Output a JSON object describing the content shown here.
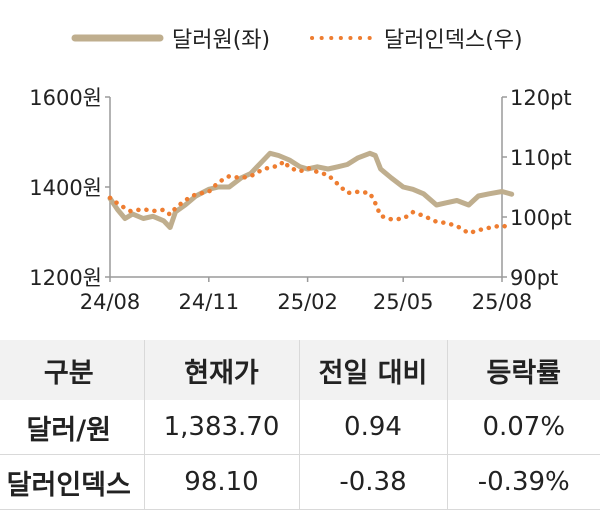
{
  "chart_data": {
    "type": "line",
    "legend": {
      "position": "top",
      "entries": [
        "달러원(좌)",
        "달러인덱스(우)"
      ]
    },
    "x_tick_labels": [
      "24/08",
      "24/11",
      "25/02",
      "25/05",
      "25/08"
    ],
    "x_ticks": [
      "2024-08-01",
      "2024-11-01",
      "2025-02-01",
      "2025-05-01",
      "2025-08-01"
    ],
    "x_range": [
      "2024-08-01",
      "2025-08-01"
    ],
    "y_left": {
      "ticks": [
        1200,
        1400,
        1600
      ],
      "tick_labels": [
        "1200원",
        "1400원",
        "1600원"
      ],
      "ylim": [
        1200,
        1600
      ]
    },
    "y_right": {
      "ticks": [
        90,
        100,
        110,
        120
      ],
      "tick_labels": [
        "90pt",
        "100pt",
        "110pt",
        "120pt"
      ],
      "ylim": [
        90,
        120
      ]
    },
    "grid": false,
    "series": [
      {
        "name": "달러원(좌)",
        "axis": "left",
        "style": "line",
        "color": "#bfae8e",
        "x": [
          "2024-08-01",
          "2024-08-08",
          "2024-08-15",
          "2024-08-22",
          "2024-09-01",
          "2024-09-10",
          "2024-09-20",
          "2024-09-26",
          "2024-10-01",
          "2024-10-10",
          "2024-10-20",
          "2024-11-01",
          "2024-11-10",
          "2024-11-20",
          "2024-12-01",
          "2024-12-10",
          "2024-12-20",
          "2024-12-28",
          "2025-01-05",
          "2025-01-15",
          "2025-01-25",
          "2025-02-01",
          "2025-02-10",
          "2025-02-20",
          "2025-03-01",
          "2025-03-10",
          "2025-03-20",
          "2025-03-31",
          "2025-04-05",
          "2025-04-10",
          "2025-04-20",
          "2025-05-01",
          "2025-05-10",
          "2025-05-20",
          "2025-06-01",
          "2025-06-10",
          "2025-06-20",
          "2025-07-01",
          "2025-07-10",
          "2025-07-20",
          "2025-08-01",
          "2025-08-10"
        ],
        "values": [
          1375,
          1350,
          1330,
          1340,
          1330,
          1335,
          1325,
          1310,
          1345,
          1360,
          1380,
          1395,
          1400,
          1400,
          1420,
          1430,
          1455,
          1475,
          1470,
          1460,
          1445,
          1440,
          1445,
          1440,
          1445,
          1450,
          1465,
          1475,
          1470,
          1440,
          1420,
          1400,
          1395,
          1385,
          1360,
          1365,
          1370,
          1360,
          1380,
          1385,
          1390,
          1384
        ]
      },
      {
        "name": "달러인덱스(우)",
        "axis": "right",
        "style": "dotted",
        "color": "#ee7d31",
        "x": [
          "2024-08-01",
          "2024-08-10",
          "2024-08-20",
          "2024-09-01",
          "2024-09-10",
          "2024-09-20",
          "2024-09-26",
          "2024-10-01",
          "2024-10-10",
          "2024-10-20",
          "2024-11-01",
          "2024-11-10",
          "2024-11-20",
          "2024-12-01",
          "2024-12-10",
          "2024-12-20",
          "2024-12-28",
          "2025-01-05",
          "2025-01-10",
          "2025-01-15",
          "2025-01-25",
          "2025-02-01",
          "2025-02-10",
          "2025-02-20",
          "2025-03-01",
          "2025-03-10",
          "2025-03-20",
          "2025-03-31",
          "2025-04-05",
          "2025-04-10",
          "2025-04-20",
          "2025-05-01",
          "2025-05-10",
          "2025-05-20",
          "2025-06-01",
          "2025-06-10",
          "2025-06-20",
          "2025-07-01",
          "2025-07-10",
          "2025-07-20",
          "2025-08-01",
          "2025-08-10"
        ],
        "values": [
          103.2,
          102,
          101,
          101.3,
          101,
          101.2,
          100.4,
          101.5,
          102.8,
          103.8,
          104.2,
          105.8,
          106.8,
          106.5,
          106.8,
          107.8,
          108.3,
          108.5,
          109.3,
          108.2,
          107.6,
          108.2,
          107.5,
          107,
          105.5,
          104,
          104.2,
          104,
          102.3,
          100.2,
          99.6,
          99.7,
          100.8,
          100.2,
          99.2,
          99,
          98.5,
          97.3,
          97.8,
          98.2,
          98.6,
          98.1
        ]
      }
    ]
  },
  "table": {
    "headers": [
      "구분",
      "현재가",
      "전일 대비",
      "등락률"
    ],
    "rows": [
      [
        "달러/원",
        "1,383.70",
        "0.94",
        "0.07%"
      ],
      [
        "달러인덱스",
        "98.10",
        "-0.38",
        "-0.39%"
      ]
    ]
  }
}
